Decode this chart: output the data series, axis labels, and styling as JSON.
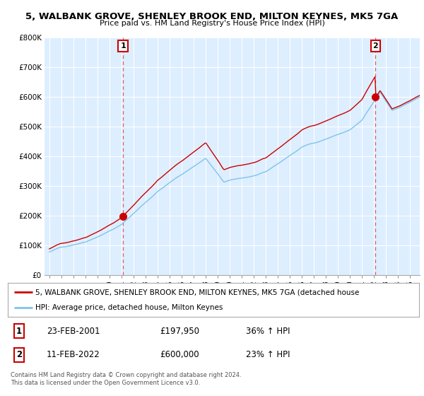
{
  "title": "5, WALBANK GROVE, SHENLEY BROOK END, MILTON KEYNES, MK5 7GA",
  "subtitle": "Price paid vs. HM Land Registry's House Price Index (HPI)",
  "ylim": [
    0,
    800000
  ],
  "yticks": [
    0,
    100000,
    200000,
    300000,
    400000,
    500000,
    600000,
    700000,
    800000
  ],
  "ytick_labels": [
    "£0",
    "£100K",
    "£200K",
    "£300K",
    "£400K",
    "£500K",
    "£600K",
    "£700K",
    "£800K"
  ],
  "sale1_date": 2001.13,
  "sale1_price": 197950,
  "sale1_label": "1",
  "sale2_date": 2022.12,
  "sale2_price": 600000,
  "sale2_label": "2",
  "hpi_color": "#7fc4e8",
  "price_color": "#cc0000",
  "dashed_color": "#e06060",
  "annotation_box_edgecolor": "#cc0000",
  "annotation_box_facecolor": "#ffffff",
  "annotation_text_color": "#000000",
  "background_color": "#ffffff",
  "plot_bg_color": "#ddeeff",
  "grid_color": "#ffffff",
  "legend_line1": "5, WALBANK GROVE, SHENLEY BROOK END, MILTON KEYNES, MK5 7GA (detached house",
  "legend_line2": "HPI: Average price, detached house, Milton Keynes",
  "table_row1": [
    "1",
    "23-FEB-2001",
    "£197,950",
    "36% ↑ HPI"
  ],
  "table_row2": [
    "2",
    "11-FEB-2022",
    "£600,000",
    "23% ↑ HPI"
  ],
  "footnote": "Contains HM Land Registry data © Crown copyright and database right 2024.\nThis data is licensed under the Open Government Licence v3.0."
}
